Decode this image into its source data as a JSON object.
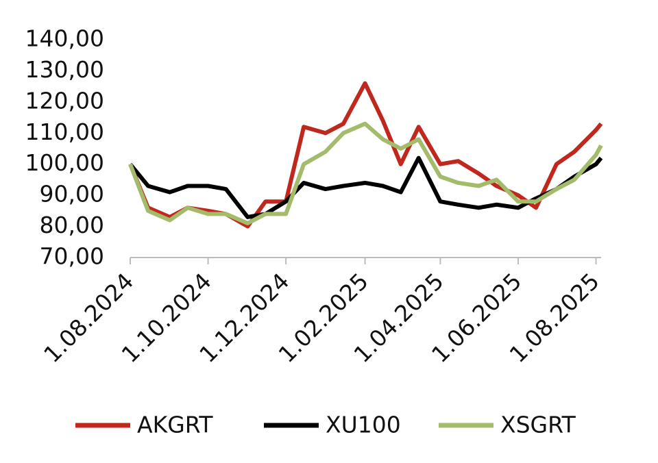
{
  "chart_data": {
    "type": "line",
    "x": [
      "2024-08-01",
      "2024-08-15",
      "2024-09-01",
      "2024-09-15",
      "2024-10-01",
      "2024-10-15",
      "2024-11-01",
      "2024-11-15",
      "2024-12-01",
      "2024-12-15",
      "2025-01-01",
      "2025-01-15",
      "2025-02-01",
      "2025-02-15",
      "2025-03-01",
      "2025-03-15",
      "2025-04-01",
      "2025-04-15",
      "2025-05-01",
      "2025-05-15",
      "2025-06-01",
      "2025-06-15",
      "2025-07-01",
      "2025-07-15",
      "2025-08-01",
      "2025-08-05"
    ],
    "series": [
      {
        "name": "AKGRT",
        "color": "#c0281e",
        "values": [
          100,
          86,
          83,
          86,
          85,
          84,
          80,
          88,
          88,
          112,
          110,
          113,
          126,
          114,
          100,
          112,
          100,
          101,
          97,
          93,
          90,
          86,
          100,
          104,
          111,
          113
        ]
      },
      {
        "name": "XU100",
        "color": "#000000",
        "values": [
          100,
          93,
          91,
          93,
          93,
          92,
          83,
          84,
          88,
          94,
          92,
          93,
          94,
          93,
          91,
          102,
          88,
          87,
          86,
          87,
          86,
          89,
          92,
          96,
          100,
          102
        ]
      },
      {
        "name": "XSGRT",
        "color": "#a3bb6a",
        "values": [
          100,
          85,
          82,
          86,
          84,
          84,
          81,
          84,
          84,
          100,
          104,
          110,
          113,
          108,
          105,
          108,
          96,
          94,
          93,
          95,
          88,
          88,
          92,
          95,
          103,
          106
        ]
      }
    ],
    "xlim": [
      "2024-08-01",
      "2025-08-05"
    ],
    "xticks": [
      {
        "value": "2024-08-01",
        "label": "1.08.2024"
      },
      {
        "value": "2024-10-01",
        "label": "1.10.2024"
      },
      {
        "value": "2024-12-01",
        "label": "1.12.2024"
      },
      {
        "value": "2025-02-01",
        "label": "1.02.2025"
      },
      {
        "value": "2025-04-01",
        "label": "1.04.2025"
      },
      {
        "value": "2025-06-01",
        "label": "1.06.2025"
      },
      {
        "value": "2025-08-01",
        "label": "1.08.2025"
      }
    ],
    "ylim": [
      70,
      140
    ],
    "yticks": [
      {
        "value": 70,
        "label": "70,00"
      },
      {
        "value": 80,
        "label": "80,00"
      },
      {
        "value": 90,
        "label": "90,00"
      },
      {
        "value": 100,
        "label": "100,00"
      },
      {
        "value": 110,
        "label": "110,00"
      },
      {
        "value": 120,
        "label": "120,00"
      },
      {
        "value": 130,
        "label": "130,00"
      },
      {
        "value": 140,
        "label": "140,00"
      }
    ]
  }
}
